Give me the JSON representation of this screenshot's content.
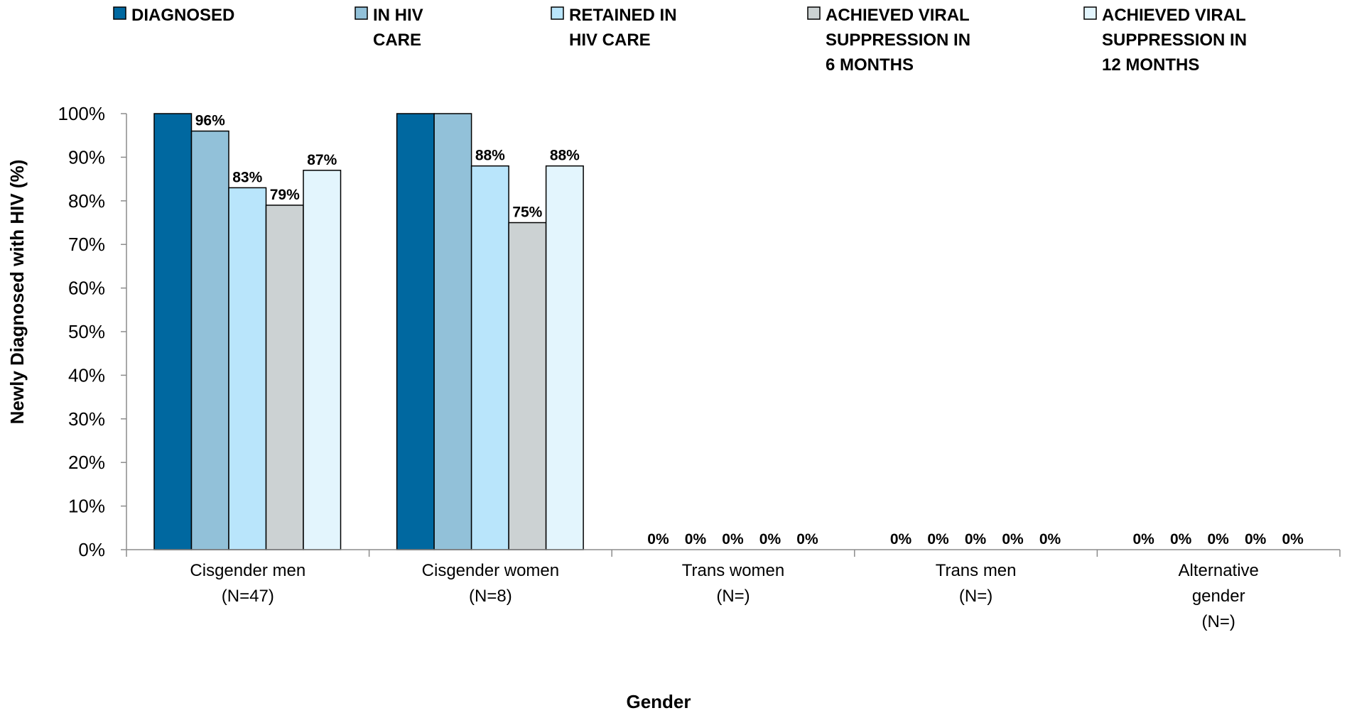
{
  "chart_data": {
    "type": "bar",
    "xlabel": "Gender",
    "ylabel": "Newly Diagnosed with HIV (%)",
    "ylim": [
      0,
      100
    ],
    "yticks": [
      "0%",
      "10%",
      "20%",
      "30%",
      "40%",
      "50%",
      "60%",
      "70%",
      "80%",
      "90%",
      "100%"
    ],
    "grid": false,
    "legend_position": "top",
    "categories": [
      [
        "Cisgender men",
        "(N=47)"
      ],
      [
        "Cisgender women",
        "(N=8)"
      ],
      [
        "Trans women",
        "(N=)"
      ],
      [
        "Trans men",
        "(N=)"
      ],
      [
        "Alternative",
        "gender",
        "(N=)"
      ]
    ],
    "series": [
      {
        "name": [
          "DIAGNOSED"
        ],
        "color": "#0068a0",
        "values": [
          100,
          100,
          0,
          0,
          0
        ],
        "labels": [
          null,
          null,
          "0%",
          "0%",
          "0%"
        ]
      },
      {
        "name": [
          "IN HIV",
          "CARE"
        ],
        "color": "#92c1d9",
        "values": [
          96,
          100,
          0,
          0,
          0
        ],
        "labels": [
          "96%",
          null,
          "0%",
          "0%",
          "0%"
        ]
      },
      {
        "name": [
          "RETAINED IN",
          "HIV CARE"
        ],
        "color": "#b9e5fb",
        "values": [
          83,
          88,
          0,
          0,
          0
        ],
        "labels": [
          "83%",
          "88%",
          "0%",
          "0%",
          "0%"
        ]
      },
      {
        "name": [
          "ACHIEVED VIRAL",
          "SUPPRESSION IN",
          "6 MONTHS"
        ],
        "color": "#ccd2d3",
        "values": [
          79,
          75,
          0,
          0,
          0
        ],
        "labels": [
          "79%",
          "75%",
          "0%",
          "0%",
          "0%"
        ]
      },
      {
        "name": [
          "ACHIEVED VIRAL",
          "SUPPRESSION IN",
          " 12 MONTHS"
        ],
        "color": "#e3f5fd",
        "values": [
          87,
          88,
          0,
          0,
          0
        ],
        "labels": [
          "87%",
          "88%",
          "0%",
          "0%",
          "0%"
        ]
      }
    ]
  }
}
